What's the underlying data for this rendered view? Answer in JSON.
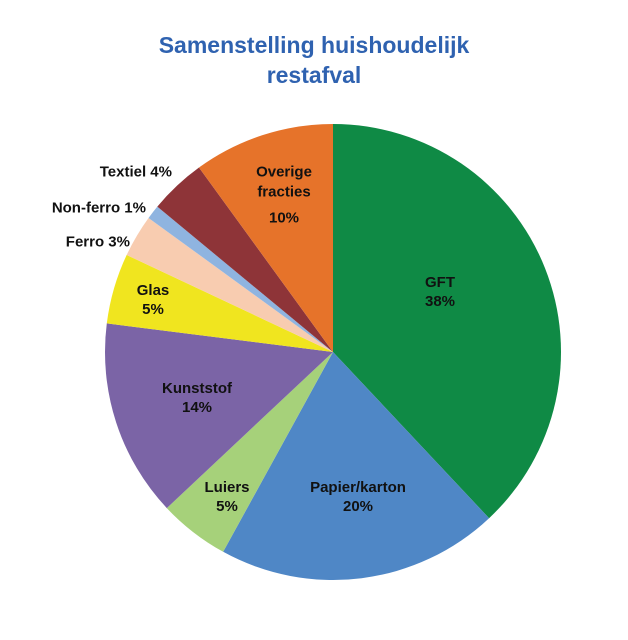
{
  "chart_data": {
    "type": "pie",
    "title": "Samenstelling huishoudelijk restafval",
    "title_lines": [
      "Samenstelling huishoudelijk",
      "restafval"
    ],
    "start_angle": "12 o'clock, clockwise",
    "slices": [
      {
        "label": "GFT",
        "value": 38,
        "pct": "38%",
        "color": "#0f8a45"
      },
      {
        "label": "Papier/karton",
        "value": 20,
        "pct": "20%",
        "color": "#4f87c6"
      },
      {
        "label": "Luiers",
        "value": 5,
        "pct": "5%",
        "color": "#a6d17a"
      },
      {
        "label": "Kunststof",
        "value": 14,
        "pct": "14%",
        "color": "#7b64a6"
      },
      {
        "label": "Glas",
        "value": 5,
        "pct": "5%",
        "color": "#f0e51f"
      },
      {
        "label": "Ferro",
        "value": 3,
        "pct": "3%",
        "color": "#f8ccb0"
      },
      {
        "label": "Non-ferro",
        "value": 1,
        "pct": "1%",
        "color": "#8fb4e0"
      },
      {
        "label": "Textiel",
        "value": 4,
        "pct": "4%",
        "color": "#8e3438"
      },
      {
        "label": "Overige fracties",
        "value": 10,
        "pct": "10%",
        "color": "#e6732a"
      }
    ]
  },
  "labels": {
    "gft": "GFT\n38%",
    "papier": "Papier/karton\n20%",
    "luiers": "Luiers\n5%",
    "kunststof": "Kunststof\n14%",
    "glas": "Glas\n5%",
    "ferro": "Ferro 3%",
    "nonferro": "Non-ferro 1%",
    "textiel": "Textiel 4%",
    "overige_1": "Overige",
    "overige_2": "fracties",
    "overige_3": "10%"
  }
}
